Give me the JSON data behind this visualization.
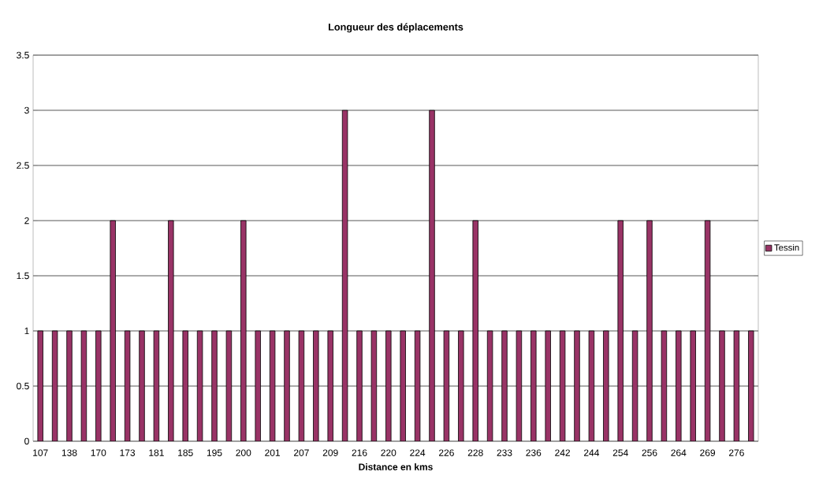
{
  "chart_data": {
    "type": "bar",
    "title": "Longueur des déplacements",
    "xlabel": "Distance en kms",
    "categories": [
      "107",
      null,
      "138",
      null,
      "170",
      null,
      "173",
      null,
      "181",
      null,
      "185",
      null,
      "195",
      null,
      "200",
      null,
      "201",
      null,
      "207",
      null,
      "209",
      null,
      "216",
      null,
      "220",
      null,
      "224",
      null,
      "226",
      null,
      "228",
      null,
      "233",
      null,
      "236",
      null,
      "242",
      null,
      "244",
      null,
      "254",
      null,
      "256",
      null,
      "264",
      null,
      "269",
      null,
      "276",
      null
    ],
    "series": [
      {
        "name": "Tessin",
        "color": "#993366",
        "values": [
          1,
          1,
          1,
          1,
          1,
          2,
          1,
          1,
          1,
          2,
          1,
          1,
          1,
          1,
          2,
          1,
          1,
          1,
          1,
          1,
          1,
          3,
          1,
          1,
          1,
          1,
          1,
          3,
          1,
          1,
          2,
          1,
          1,
          1,
          1,
          1,
          1,
          1,
          1,
          1,
          2,
          1,
          2,
          1,
          1,
          1,
          2,
          1,
          1,
          1
        ]
      }
    ],
    "ylim": [
      0,
      3.5
    ],
    "yticks": [
      0,
      0.5,
      1,
      1.5,
      2,
      2.5,
      3,
      3.5
    ],
    "grid": "y",
    "legend": "right"
  }
}
